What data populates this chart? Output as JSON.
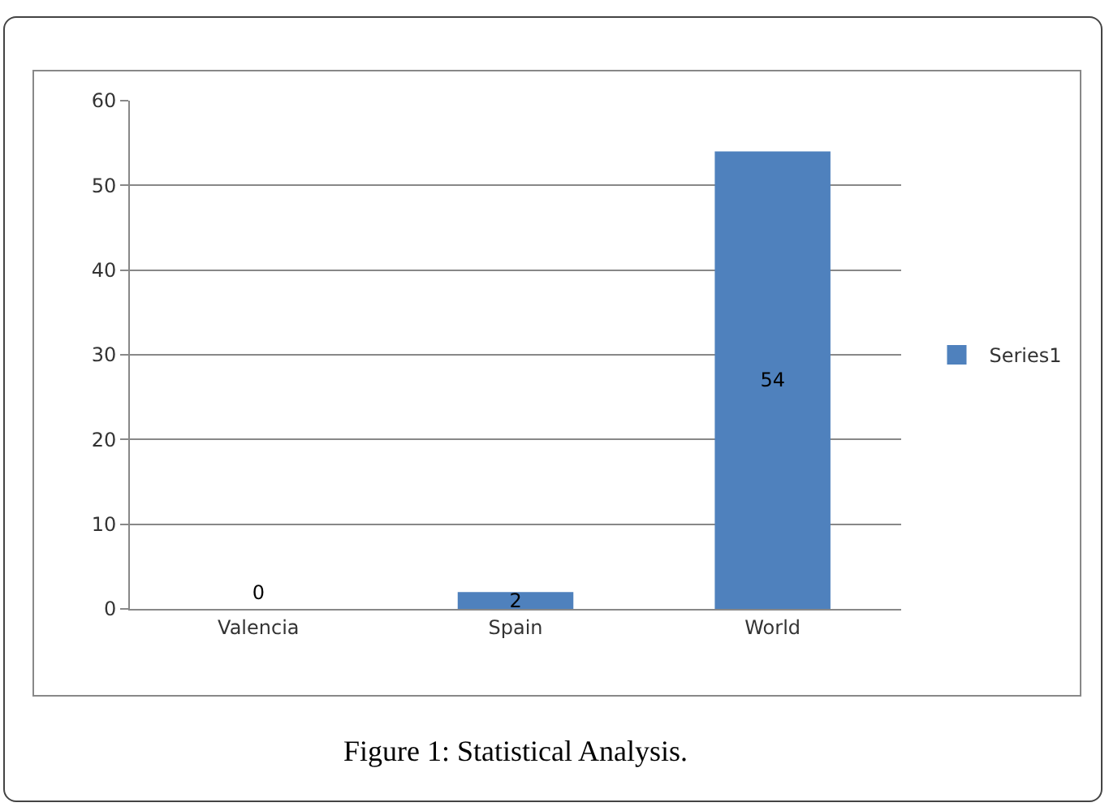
{
  "chart_data": {
    "type": "bar",
    "title": "Figure 1: Statistical Analysis.",
    "categories": [
      "Valencia",
      "Spain",
      "World"
    ],
    "series": [
      {
        "name": "Series1",
        "color": "#4f81bd",
        "values": [
          0,
          2,
          54
        ]
      }
    ],
    "ylim": [
      0,
      60
    ],
    "yticks": [
      0,
      10,
      20,
      30,
      40,
      50,
      60
    ],
    "grid": "y",
    "legend": "right",
    "data_labels": true
  }
}
